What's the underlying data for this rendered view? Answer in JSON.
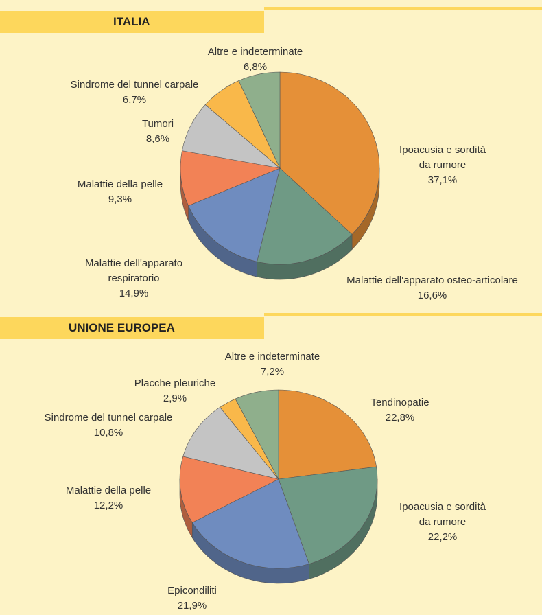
{
  "chart_data": [
    {
      "type": "pie",
      "title": "ITALIA",
      "categories": [
        "Ipoacusia e sordità\nda rumore",
        "Malattie dell'apparato osteo-articolare",
        "Malattie dell'apparato\nrespiratorio",
        "Malattie della pelle",
        "Tumori",
        "Sindrome del tunnel carpale",
        "Altre e indeterminate"
      ],
      "values": [
        37.1,
        16.6,
        14.9,
        9.3,
        8.6,
        6.7,
        6.8
      ],
      "value_labels": [
        "37,1%",
        "16,6%",
        "14,9%",
        "9,3%",
        "8,6%",
        "6,7%",
        "6,8%"
      ],
      "colors": [
        "#e59038",
        "#6f9a85",
        "#6f8cbf",
        "#f28256",
        "#c4c4c4",
        "#f9b84a",
        "#8faf8c"
      ]
    },
    {
      "type": "pie",
      "title": "UNIONE EUROPEA",
      "categories": [
        "Tendinopatie",
        "Ipoacusia e sordità\nda rumore",
        "Epicondiliti",
        "Malattie della pelle",
        "Sindrome del tunnel carpale",
        "Placche pleuriche",
        "Altre e indeterminate"
      ],
      "values": [
        22.8,
        22.2,
        21.9,
        12.2,
        10.8,
        2.9,
        7.2
      ],
      "value_labels": [
        "22,8%",
        "22,2%",
        "21,9%",
        "12,2%",
        "10,8%",
        "2,9%",
        "7,2%"
      ],
      "colors": [
        "#e59038",
        "#6f9a85",
        "#6f8cbf",
        "#f28256",
        "#c4c4c4",
        "#f9b84a",
        "#8faf8c"
      ]
    }
  ]
}
